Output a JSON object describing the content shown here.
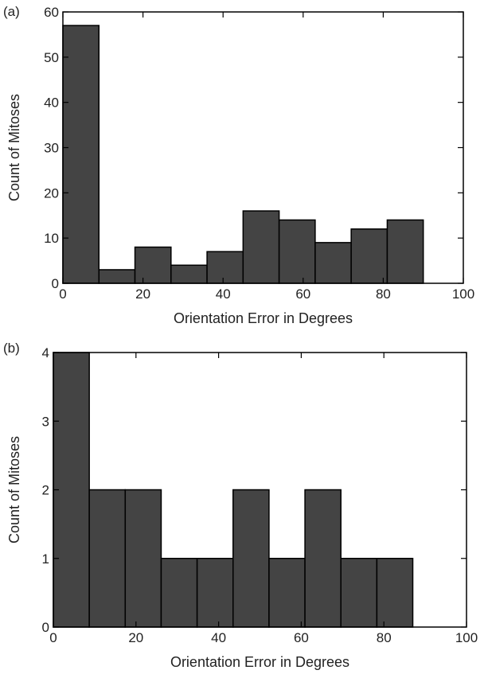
{
  "chart_data": [
    {
      "panel": "(a)",
      "type": "bar",
      "xlabel": "Orientation Error in Degrees",
      "ylabel": "Count of Mitoses",
      "xlim": [
        0,
        100
      ],
      "ylim": [
        0,
        60
      ],
      "xticks": [
        0,
        20,
        40,
        60,
        80,
        100
      ],
      "yticks": [
        0,
        10,
        20,
        30,
        40,
        50,
        60
      ],
      "bin_edges": [
        0,
        9,
        18,
        27,
        36,
        45,
        54,
        63,
        72,
        81,
        90
      ],
      "values": [
        57,
        3,
        8,
        4,
        7,
        16,
        14,
        9,
        12,
        14
      ],
      "bar_color": "#444444",
      "grid": false
    },
    {
      "panel": "(b)",
      "type": "bar",
      "xlabel": "Orientation Error in Degrees",
      "ylabel": "Count of Mitoses",
      "xlim": [
        0,
        100
      ],
      "ylim": [
        0,
        4
      ],
      "xticks": [
        0,
        20,
        40,
        60,
        80,
        100
      ],
      "yticks": [
        0,
        1,
        2,
        3,
        4
      ],
      "bin_edges": [
        0,
        8.7,
        17.4,
        26.1,
        34.8,
        43.5,
        52.2,
        60.9,
        69.6,
        78.3,
        87
      ],
      "values": [
        4,
        2,
        2,
        1,
        1,
        2,
        1,
        2,
        1,
        1
      ],
      "bar_color": "#444444",
      "grid": false
    }
  ]
}
